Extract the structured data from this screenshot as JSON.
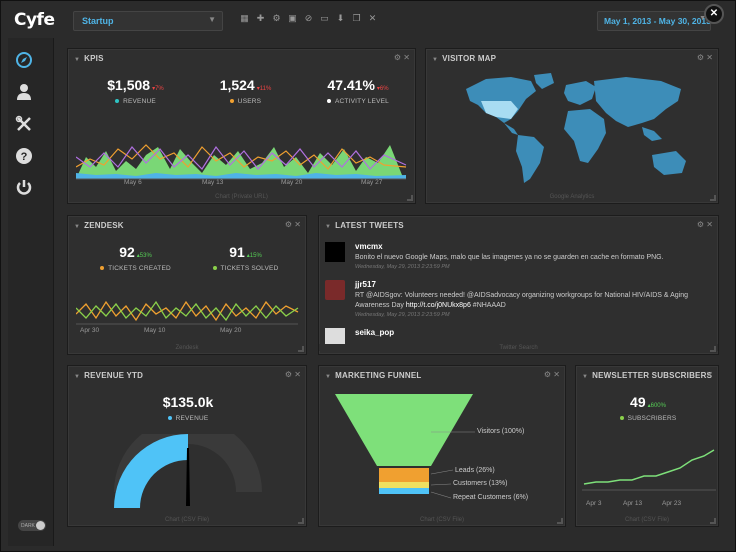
{
  "app": {
    "logo": "Cyfe"
  },
  "topbar": {
    "dashboard": "Startup",
    "date_range": "May 1, 2013 - May 30, 2013",
    "tool_icons": [
      "grid-icon",
      "plus-icon",
      "gear-icon",
      "image-icon",
      "link-icon",
      "monitor-icon",
      "download-icon",
      "copy-icon",
      "close-icon"
    ]
  },
  "sidebar": {
    "items": [
      "compass-icon",
      "user-icon",
      "tools-icon",
      "help-icon",
      "power-icon"
    ],
    "dark_label": "DARK"
  },
  "kpis": {
    "title": "KPIS",
    "metrics": [
      {
        "value": "$1,508",
        "change": "▾7%",
        "label": "REVENUE",
        "color": "#2ec4c4"
      },
      {
        "value": "1,524",
        "change": "▾11%",
        "label": "USERS",
        "color": "#f0a030"
      },
      {
        "value": "47.41%",
        "change": "▾6%",
        "label": "ACTIVITY LEVEL",
        "color": "#ffffff"
      }
    ],
    "x_labels": [
      "May 6",
      "May 13",
      "May 20",
      "May 27"
    ],
    "footer": "Chart (Private URL)"
  },
  "visitor_map": {
    "title": "VISITOR MAP",
    "footer": "Google Analytics"
  },
  "zendesk": {
    "title": "ZENDESK",
    "metrics": [
      {
        "value": "92",
        "change": "▴53%",
        "label": "TICKETS CREATED",
        "color": "#f0a030"
      },
      {
        "value": "91",
        "change": "▴15%",
        "label": "TICKETS SOLVED",
        "color": "#8ad04a"
      }
    ],
    "x_labels": [
      "Apr 30",
      "May 10",
      "May 20"
    ],
    "footer": "Zendesk"
  },
  "tweets": {
    "title": "LATEST TWEETS",
    "items": [
      {
        "user": "vmcmx",
        "text": "Bonito el nuevo Google Maps, malo que las imagenes ya no se guarden en cache en formato PNG.",
        "time": "Wednesday, May 29, 2013 2:23:59 PM"
      },
      {
        "user": "jjr517",
        "text": "RT @AIDSgov: Volunteers needed! @AIDSadvocacy organizing workgroups for National HIV/AIDS & Aging Awareness Day",
        "link": "http://t.co/j0NUkx8p6",
        "tag": "#NHAAAD",
        "time": "Wednesday, May 29, 2013 2:23:59 PM"
      },
      {
        "user": "seika_pop"
      }
    ],
    "footer": "Twitter Search"
  },
  "revenue_ytd": {
    "title": "REVENUE YTD",
    "value": "$135.0k",
    "label": "REVENUE",
    "color": "#4fc3f7",
    "footer": "Chart (CSV File)"
  },
  "funnel": {
    "title": "MARKETING FUNNEL",
    "stages": [
      "Visitors (100%)",
      "Leads (26%)",
      "Customers (13%)",
      "Repeat Customers (6%)"
    ],
    "footer": "Chart (CSV File)"
  },
  "newsletter": {
    "title": "NEWSLETTER SUBSCRIBERS",
    "value": "49",
    "change": "▴600%",
    "label": "SUBSCRIBERS",
    "x_labels": [
      "Apr 3",
      "Apr 13",
      "Apr 23"
    ],
    "footer": "Chart (CSV File)"
  }
}
